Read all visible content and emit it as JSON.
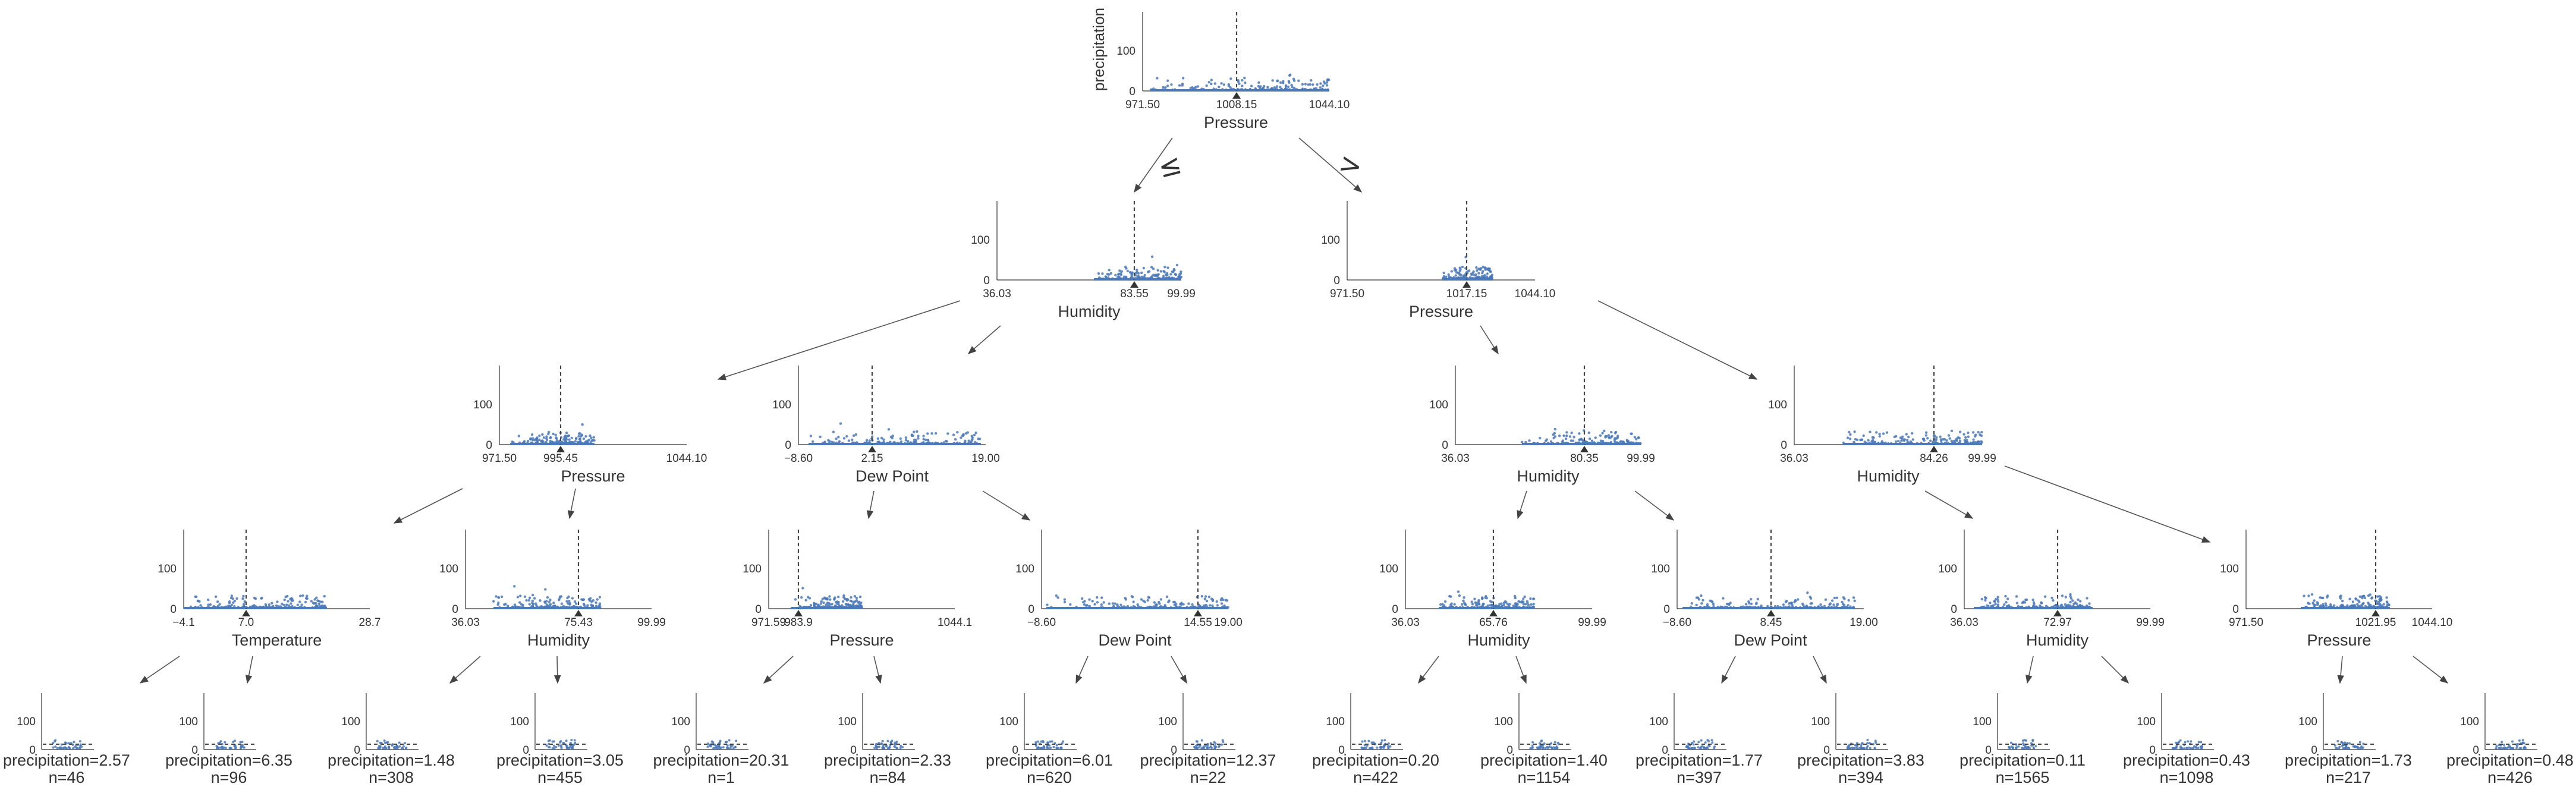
{
  "target": "precipitation",
  "edge_labels": {
    "le": "≤",
    "gt": ">"
  },
  "colors": {
    "points": "#4a78b8",
    "axis": "#333333",
    "split": "#444444",
    "arrow": "#555555"
  },
  "y_ticks": [
    "100",
    "0"
  ],
  "internal_nodes": [
    {
      "id": "n0",
      "feature": "Pressure",
      "split": "1008.15",
      "range": [
        "971.50",
        "1044.10"
      ],
      "show_ylabel": true
    },
    {
      "id": "n1",
      "feature": "Humidity",
      "split": "83.55",
      "range": [
        "36.03",
        "99.99"
      ]
    },
    {
      "id": "n2",
      "feature": "Pressure",
      "split": "1017.15",
      "range": [
        "971.50",
        "1044.10"
      ]
    },
    {
      "id": "n3",
      "feature": "Pressure",
      "split": "995.45",
      "range": [
        "971.50",
        "1044.10"
      ]
    },
    {
      "id": "n4",
      "feature": "Dew Point",
      "split": "2.15",
      "range": [
        "−8.60",
        "19.00"
      ]
    },
    {
      "id": "n5",
      "feature": "Humidity",
      "split": "80.35",
      "range": [
        "36.03",
        "99.99"
      ]
    },
    {
      "id": "n6",
      "feature": "Humidity",
      "split": "84.26",
      "range": [
        "36.03",
        "99.99"
      ]
    },
    {
      "id": "n7",
      "feature": "Temperature",
      "split": "7.0",
      "range": [
        "−4.1",
        "28.7"
      ]
    },
    {
      "id": "n8",
      "feature": "Humidity",
      "split": "75.43",
      "range": [
        "36.03",
        "99.99"
      ]
    },
    {
      "id": "n9",
      "feature": "Pressure",
      "split": "983.9",
      "range": [
        "971.59",
        "1044.1"
      ]
    },
    {
      "id": "n10",
      "feature": "Dew Point",
      "split": "14.55",
      "range": [
        "−8.60",
        "19.00"
      ]
    },
    {
      "id": "n11",
      "feature": "Humidity",
      "split": "65.76",
      "range": [
        "36.03",
        "99.99"
      ]
    },
    {
      "id": "n12",
      "feature": "Dew Point",
      "split": "8.45",
      "range": [
        "−8.60",
        "19.00"
      ]
    },
    {
      "id": "n13",
      "feature": "Humidity",
      "split": "72.97",
      "range": [
        "36.03",
        "99.99"
      ]
    },
    {
      "id": "n14",
      "feature": "Pressure",
      "split": "1021.95",
      "range": [
        "971.50",
        "1044.10"
      ]
    }
  ],
  "leaves": [
    {
      "prediction": "precipitation=2.57",
      "n": "n=46"
    },
    {
      "prediction": "precipitation=6.35",
      "n": "n=96"
    },
    {
      "prediction": "precipitation=1.48",
      "n": "n=308"
    },
    {
      "prediction": "precipitation=3.05",
      "n": "n=455"
    },
    {
      "prediction": "precipitation=20.31",
      "n": "n=1"
    },
    {
      "prediction": "precipitation=2.33",
      "n": "n=84"
    },
    {
      "prediction": "precipitation=6.01",
      "n": "n=620"
    },
    {
      "prediction": "precipitation=12.37",
      "n": "n=22"
    },
    {
      "prediction": "precipitation=0.20",
      "n": "n=422"
    },
    {
      "prediction": "precipitation=1.40",
      "n": "n=1154"
    },
    {
      "prediction": "precipitation=1.77",
      "n": "n=397"
    },
    {
      "prediction": "precipitation=3.83",
      "n": "n=394"
    },
    {
      "prediction": "precipitation=0.11",
      "n": "n=1565"
    },
    {
      "prediction": "precipitation=0.43",
      "n": "n=1098"
    },
    {
      "prediction": "precipitation=1.73",
      "n": "n=217"
    },
    {
      "prediction": "precipitation=0.48",
      "n": "n=426"
    }
  ]
}
